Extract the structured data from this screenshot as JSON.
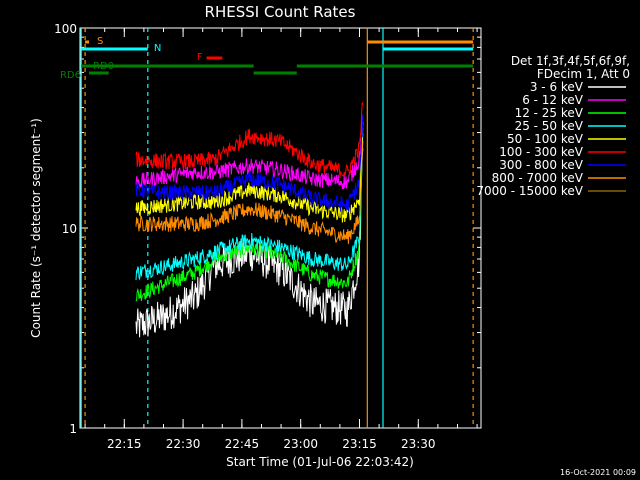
{
  "chart_data": {
    "type": "line",
    "title": "RHESSI Count Rates",
    "xlabel": "Start Time (01-Jul-06 22:03:42)",
    "ylabel": "Count Rate (s⁻¹ detector segment⁻¹)",
    "y_scale": "log",
    "ylim": [
      1,
      100
    ],
    "xlim": [
      "22:03:42",
      "23:46:00"
    ],
    "x_ticks": [
      "22:15",
      "22:30",
      "22:45",
      "23:00",
      "23:15",
      "23:30"
    ],
    "y_ticks": [
      "1",
      "10",
      "100"
    ],
    "legend_header": [
      "Det 1f,3f,4f,5f,6f,9f,",
      "FDecim 1, Att 0"
    ],
    "legend_position": "right",
    "series": [
      {
        "name": "3 - 6 keV",
        "color": "#ffffff",
        "times": [
          "22:18",
          "22:25",
          "22:33",
          "22:38",
          "22:47",
          "22:55",
          "23:03",
          "23:12",
          "23:15",
          "23:16"
        ],
        "values": [
          3.2,
          3.6,
          4.5,
          6.5,
          7.5,
          6.2,
          4.2,
          3.9,
          7.0,
          40
        ]
      },
      {
        "name": "6 - 12 keV",
        "color": "#ff00ff",
        "times": [
          "22:18",
          "22:25",
          "22:33",
          "22:38",
          "22:47",
          "22:55",
          "23:03",
          "23:12",
          "23:15",
          "23:16"
        ],
        "values": [
          17,
          18,
          19,
          19,
          20.5,
          19.5,
          17.5,
          17,
          22,
          40
        ]
      },
      {
        "name": "12 - 25 keV",
        "color": "#00ff00",
        "times": [
          "22:18",
          "22:25",
          "22:33",
          "22:38",
          "22:47",
          "22:55",
          "23:03",
          "23:12",
          "23:15",
          "23:16"
        ],
        "values": [
          4.6,
          5.2,
          6.0,
          7.0,
          8.0,
          7.2,
          5.8,
          5.3,
          8.0,
          40
        ]
      },
      {
        "name": "25 - 50 keV",
        "color": "#00ffff",
        "times": [
          "22:18",
          "22:25",
          "22:33",
          "22:38",
          "22:47",
          "22:55",
          "23:03",
          "23:12",
          "23:15",
          "23:16"
        ],
        "values": [
          6.0,
          6.4,
          7.0,
          7.6,
          8.7,
          8.0,
          7.0,
          6.5,
          9.0,
          40
        ]
      },
      {
        "name": "50 - 100 keV",
        "color": "#ffff00",
        "times": [
          "22:18",
          "22:25",
          "22:33",
          "22:38",
          "22:47",
          "22:55",
          "23:03",
          "23:12",
          "23:15",
          "23:16"
        ],
        "values": [
          12.5,
          13.0,
          13.5,
          13.5,
          15.5,
          14.5,
          12.5,
          11.5,
          14.0,
          40
        ]
      },
      {
        "name": "100 - 300 keV",
        "color": "#ff0000",
        "times": [
          "22:18",
          "22:25",
          "22:33",
          "22:38",
          "22:47",
          "22:55",
          "23:03",
          "23:12",
          "23:15",
          "23:16"
        ],
        "values": [
          22,
          21.5,
          21.5,
          22,
          29,
          27,
          21,
          19,
          25,
          48
        ]
      },
      {
        "name": "300 - 800 keV",
        "color": "#0000ff",
        "times": [
          "22:18",
          "22:25",
          "22:33",
          "22:38",
          "22:47",
          "22:55",
          "23:03",
          "23:12",
          "23:15",
          "23:16"
        ],
        "values": [
          15.5,
          15.0,
          15.0,
          15.0,
          17.5,
          16.5,
          14.0,
          13.0,
          17.0,
          40
        ]
      },
      {
        "name": "800 - 7000 keV",
        "color": "#ff8c00",
        "times": [
          "22:18",
          "22:25",
          "22:33",
          "22:38",
          "22:47",
          "22:55",
          "23:03",
          "23:12",
          "23:15",
          "23:16"
        ],
        "values": [
          10.5,
          10.5,
          10.5,
          11.0,
          12.5,
          11.5,
          10.0,
          9.0,
          11.0,
          35
        ]
      },
      {
        "name": "7000 - 15000 keV",
        "color": "#8b6508",
        "times": [],
        "values": []
      }
    ],
    "annotations": [
      {
        "label": "S",
        "color": "#ff8c00",
        "start": "22:05",
        "end": "22:06"
      },
      {
        "label": "N",
        "color": "#00ffff",
        "start": "22:04",
        "end": "22:21"
      },
      {
        "label": "F",
        "color": "#ff0000",
        "start": "22:36",
        "end": "22:40"
      },
      {
        "label": "RD0",
        "color": "#008000",
        "start": "22:04",
        "end": "23:44"
      },
      {
        "label": "RD6",
        "color": "#008000",
        "start": "22:06",
        "end": "22:11"
      }
    ]
  },
  "footer": {
    "timestamp": "16-Oct-2021 00:09"
  }
}
